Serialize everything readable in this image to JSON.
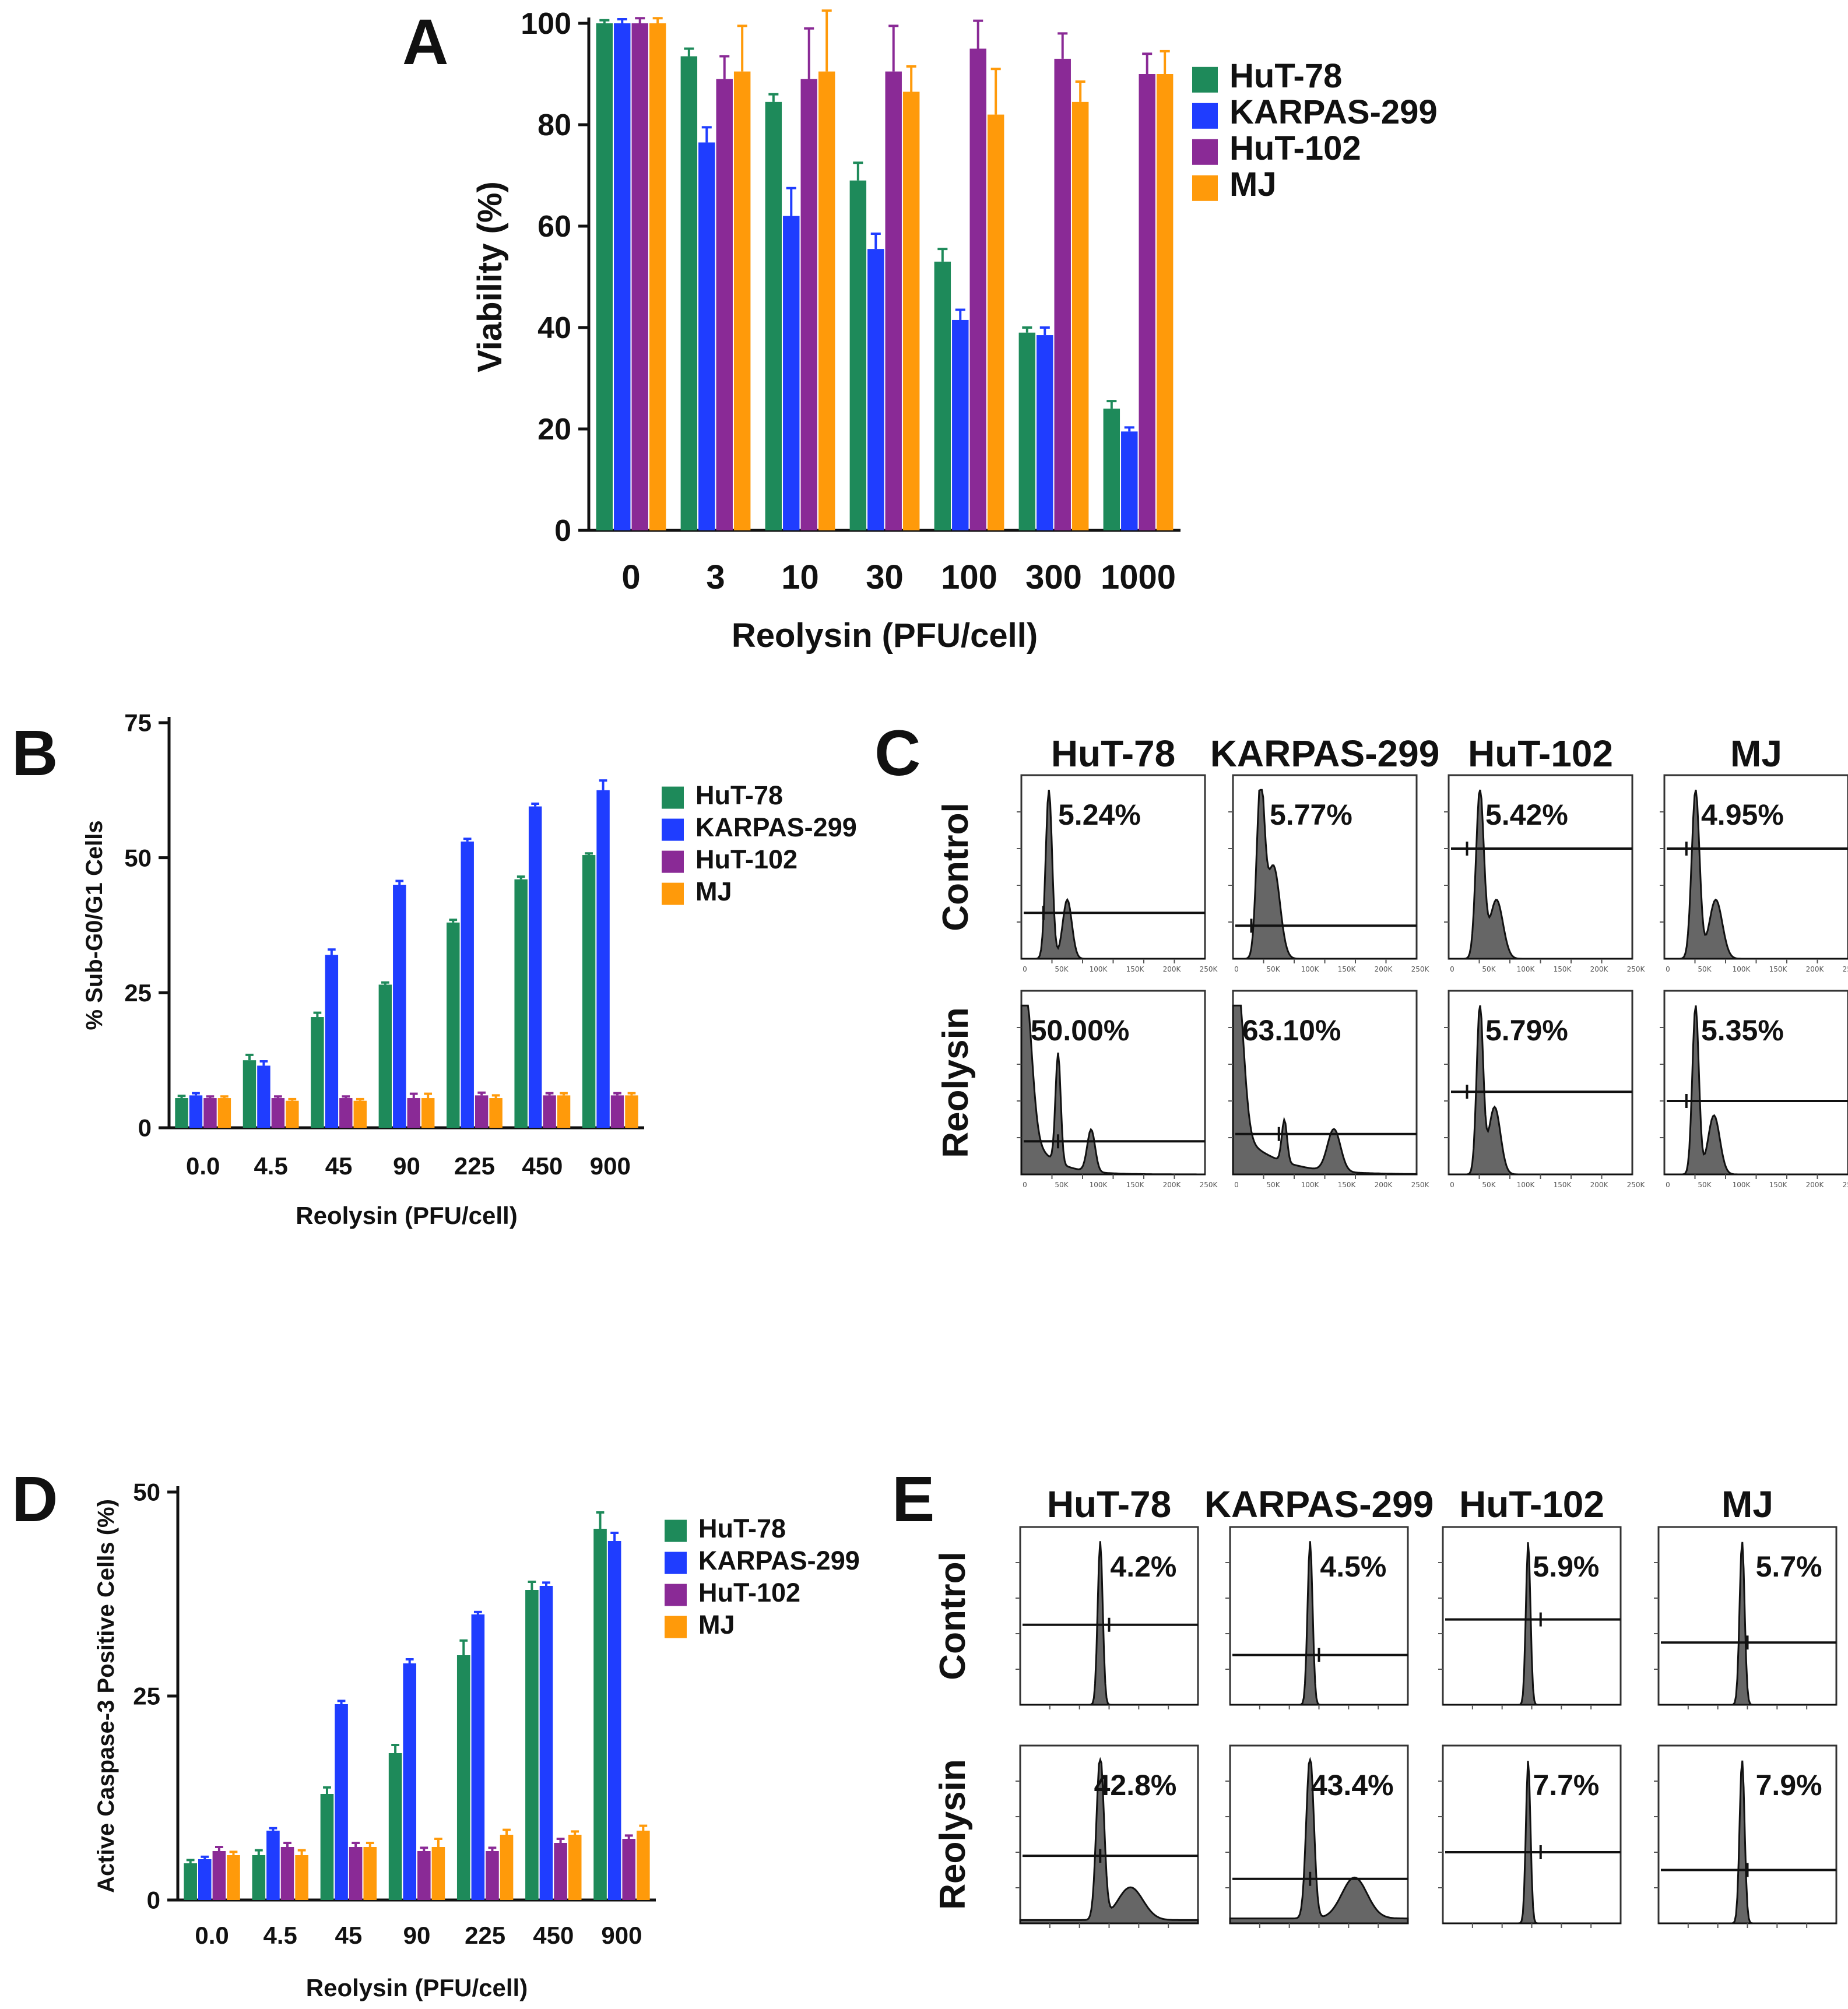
{
  "colors": {
    "HuT-78": "#1e8a5a",
    "KARPAS-299": "#1f3dff",
    "HuT-102": "#8a2a96",
    "MJ": "#ff9a0a"
  },
  "panels": {
    "A": {
      "letter": "A"
    },
    "B": {
      "letter": "B"
    },
    "C": {
      "letter": "C",
      "row_labels": [
        "Control",
        "Reolysin"
      ],
      "columns": [
        "HuT-78",
        "KARPAS-299",
        "HuT-102",
        "MJ"
      ],
      "control_pcts": [
        "5.24%",
        "5.77%",
        "5.42%",
        "4.95%"
      ],
      "reolysin_pcts": [
        "50.00%",
        "63.10%",
        "5.79%",
        "5.35%"
      ],
      "x_ticks": [
        "0",
        "50K",
        "100K",
        "150K",
        "200K",
        "250K"
      ]
    },
    "D": {
      "letter": "D"
    },
    "E": {
      "letter": "E",
      "row_labels": [
        "Control",
        "Reolysin"
      ],
      "columns": [
        "HuT-78",
        "KARPAS-299",
        "HuT-102",
        "MJ"
      ],
      "control_pcts": [
        "4.2%",
        "4.5%",
        "5.9%",
        "5.7%"
      ],
      "reolysin_pcts": [
        "42.8%",
        "43.4%",
        "7.7%",
        "7.9%"
      ]
    }
  },
  "chart_data": [
    {
      "id": "A",
      "type": "bar",
      "title": "",
      "xlabel": "Reolysin (PFU/cell)",
      "ylabel": "Viability (%)",
      "ylim": [
        0,
        100
      ],
      "yticks": [
        "0",
        "20",
        "40",
        "60",
        "80",
        "100"
      ],
      "categories": [
        "0",
        "3",
        "10",
        "30",
        "100",
        "300",
        "1000"
      ],
      "legend": [
        "HuT-78",
        "KARPAS-299",
        "HuT-102",
        "MJ"
      ],
      "series": [
        {
          "name": "HuT-78",
          "values": [
            100,
            93.5,
            84.5,
            69,
            53,
            39,
            24
          ],
          "errors": [
            0.6,
            1.5,
            1.5,
            3.5,
            2.5,
            1,
            1.5
          ]
        },
        {
          "name": "KARPAS-299",
          "values": [
            100,
            76.5,
            62,
            55.5,
            41.5,
            38.5,
            19.5
          ],
          "errors": [
            0.8,
            3,
            5.5,
            3,
            2,
            1.5,
            0.8
          ]
        },
        {
          "name": "HuT-102",
          "values": [
            100,
            89,
            89,
            90.5,
            95,
            93,
            90
          ],
          "errors": [
            1,
            4.5,
            10,
            9,
            5.5,
            5,
            4
          ]
        },
        {
          "name": "MJ",
          "values": [
            100,
            90.5,
            90.5,
            86.5,
            82,
            84.5,
            90
          ],
          "errors": [
            1,
            9,
            12,
            5,
            9,
            4,
            4.5
          ]
        }
      ]
    },
    {
      "id": "B",
      "type": "bar",
      "title": "",
      "xlabel": "Reolysin (PFU/cell)",
      "ylabel": "% Sub-G0/G1 Cells",
      "ylim": [
        0,
        75
      ],
      "yticks": [
        "0",
        "25",
        "50",
        "75"
      ],
      "categories": [
        "0.0",
        "4.5",
        "45",
        "90",
        "225",
        "450",
        "900"
      ],
      "legend": [
        "HuT-78",
        "KARPAS-299",
        "HuT-102",
        "MJ"
      ],
      "series": [
        {
          "name": "HuT-78",
          "values": [
            5.5,
            12.5,
            20.5,
            26.5,
            38,
            46,
            50.5
          ],
          "errors": [
            0.4,
            1,
            0.8,
            0.4,
            0.5,
            0.5,
            0.3
          ]
        },
        {
          "name": "KARPAS-299",
          "values": [
            6,
            11.5,
            32,
            45,
            53,
            59.5,
            62.5
          ],
          "errors": [
            0.4,
            0.8,
            1,
            0.7,
            0.5,
            0.5,
            1.8
          ]
        },
        {
          "name": "HuT-102",
          "values": [
            5.5,
            5.5,
            5.5,
            5.5,
            6,
            6,
            6
          ],
          "errors": [
            0.3,
            0.3,
            0.3,
            0.8,
            0.5,
            0.4,
            0.4
          ]
        },
        {
          "name": "MJ",
          "values": [
            5.5,
            5,
            5,
            5.5,
            5.5,
            6,
            6
          ],
          "errors": [
            0.3,
            0.3,
            0.3,
            0.8,
            0.5,
            0.4,
            0.4
          ]
        }
      ]
    },
    {
      "id": "D",
      "type": "bar",
      "title": "",
      "xlabel": "Reolysin (PFU/cell)",
      "ylabel": "Active Caspase-3 Positive Cells (%)",
      "ylim": [
        0,
        50
      ],
      "yticks": [
        "0",
        "25",
        "50"
      ],
      "categories": [
        "0.0",
        "4.5",
        "45",
        "90",
        "225",
        "450",
        "900"
      ],
      "legend": [
        "HuT-78",
        "KARPAS-299",
        "HuT-102",
        "MJ"
      ],
      "series": [
        {
          "name": "HuT-78",
          "values": [
            4.5,
            5.5,
            13,
            18,
            30,
            38,
            45.5
          ],
          "errors": [
            0.4,
            0.6,
            0.8,
            1,
            1.8,
            1,
            2
          ]
        },
        {
          "name": "KARPAS-299",
          "values": [
            5,
            8.5,
            24,
            29,
            35,
            38.5,
            44
          ],
          "errors": [
            0.3,
            0.3,
            0.4,
            0.5,
            0.3,
            0.4,
            1
          ]
        },
        {
          "name": "HuT-102",
          "values": [
            6,
            6.5,
            6.5,
            6,
            6,
            7,
            7.5
          ],
          "errors": [
            0.5,
            0.5,
            0.5,
            0.4,
            0.4,
            0.5,
            0.4
          ]
        },
        {
          "name": "MJ",
          "values": [
            5.5,
            5.5,
            6.5,
            6.5,
            8,
            8,
            8.5
          ],
          "errors": [
            0.4,
            0.6,
            0.5,
            1,
            0.6,
            0.4,
            0.6
          ]
        }
      ]
    }
  ]
}
